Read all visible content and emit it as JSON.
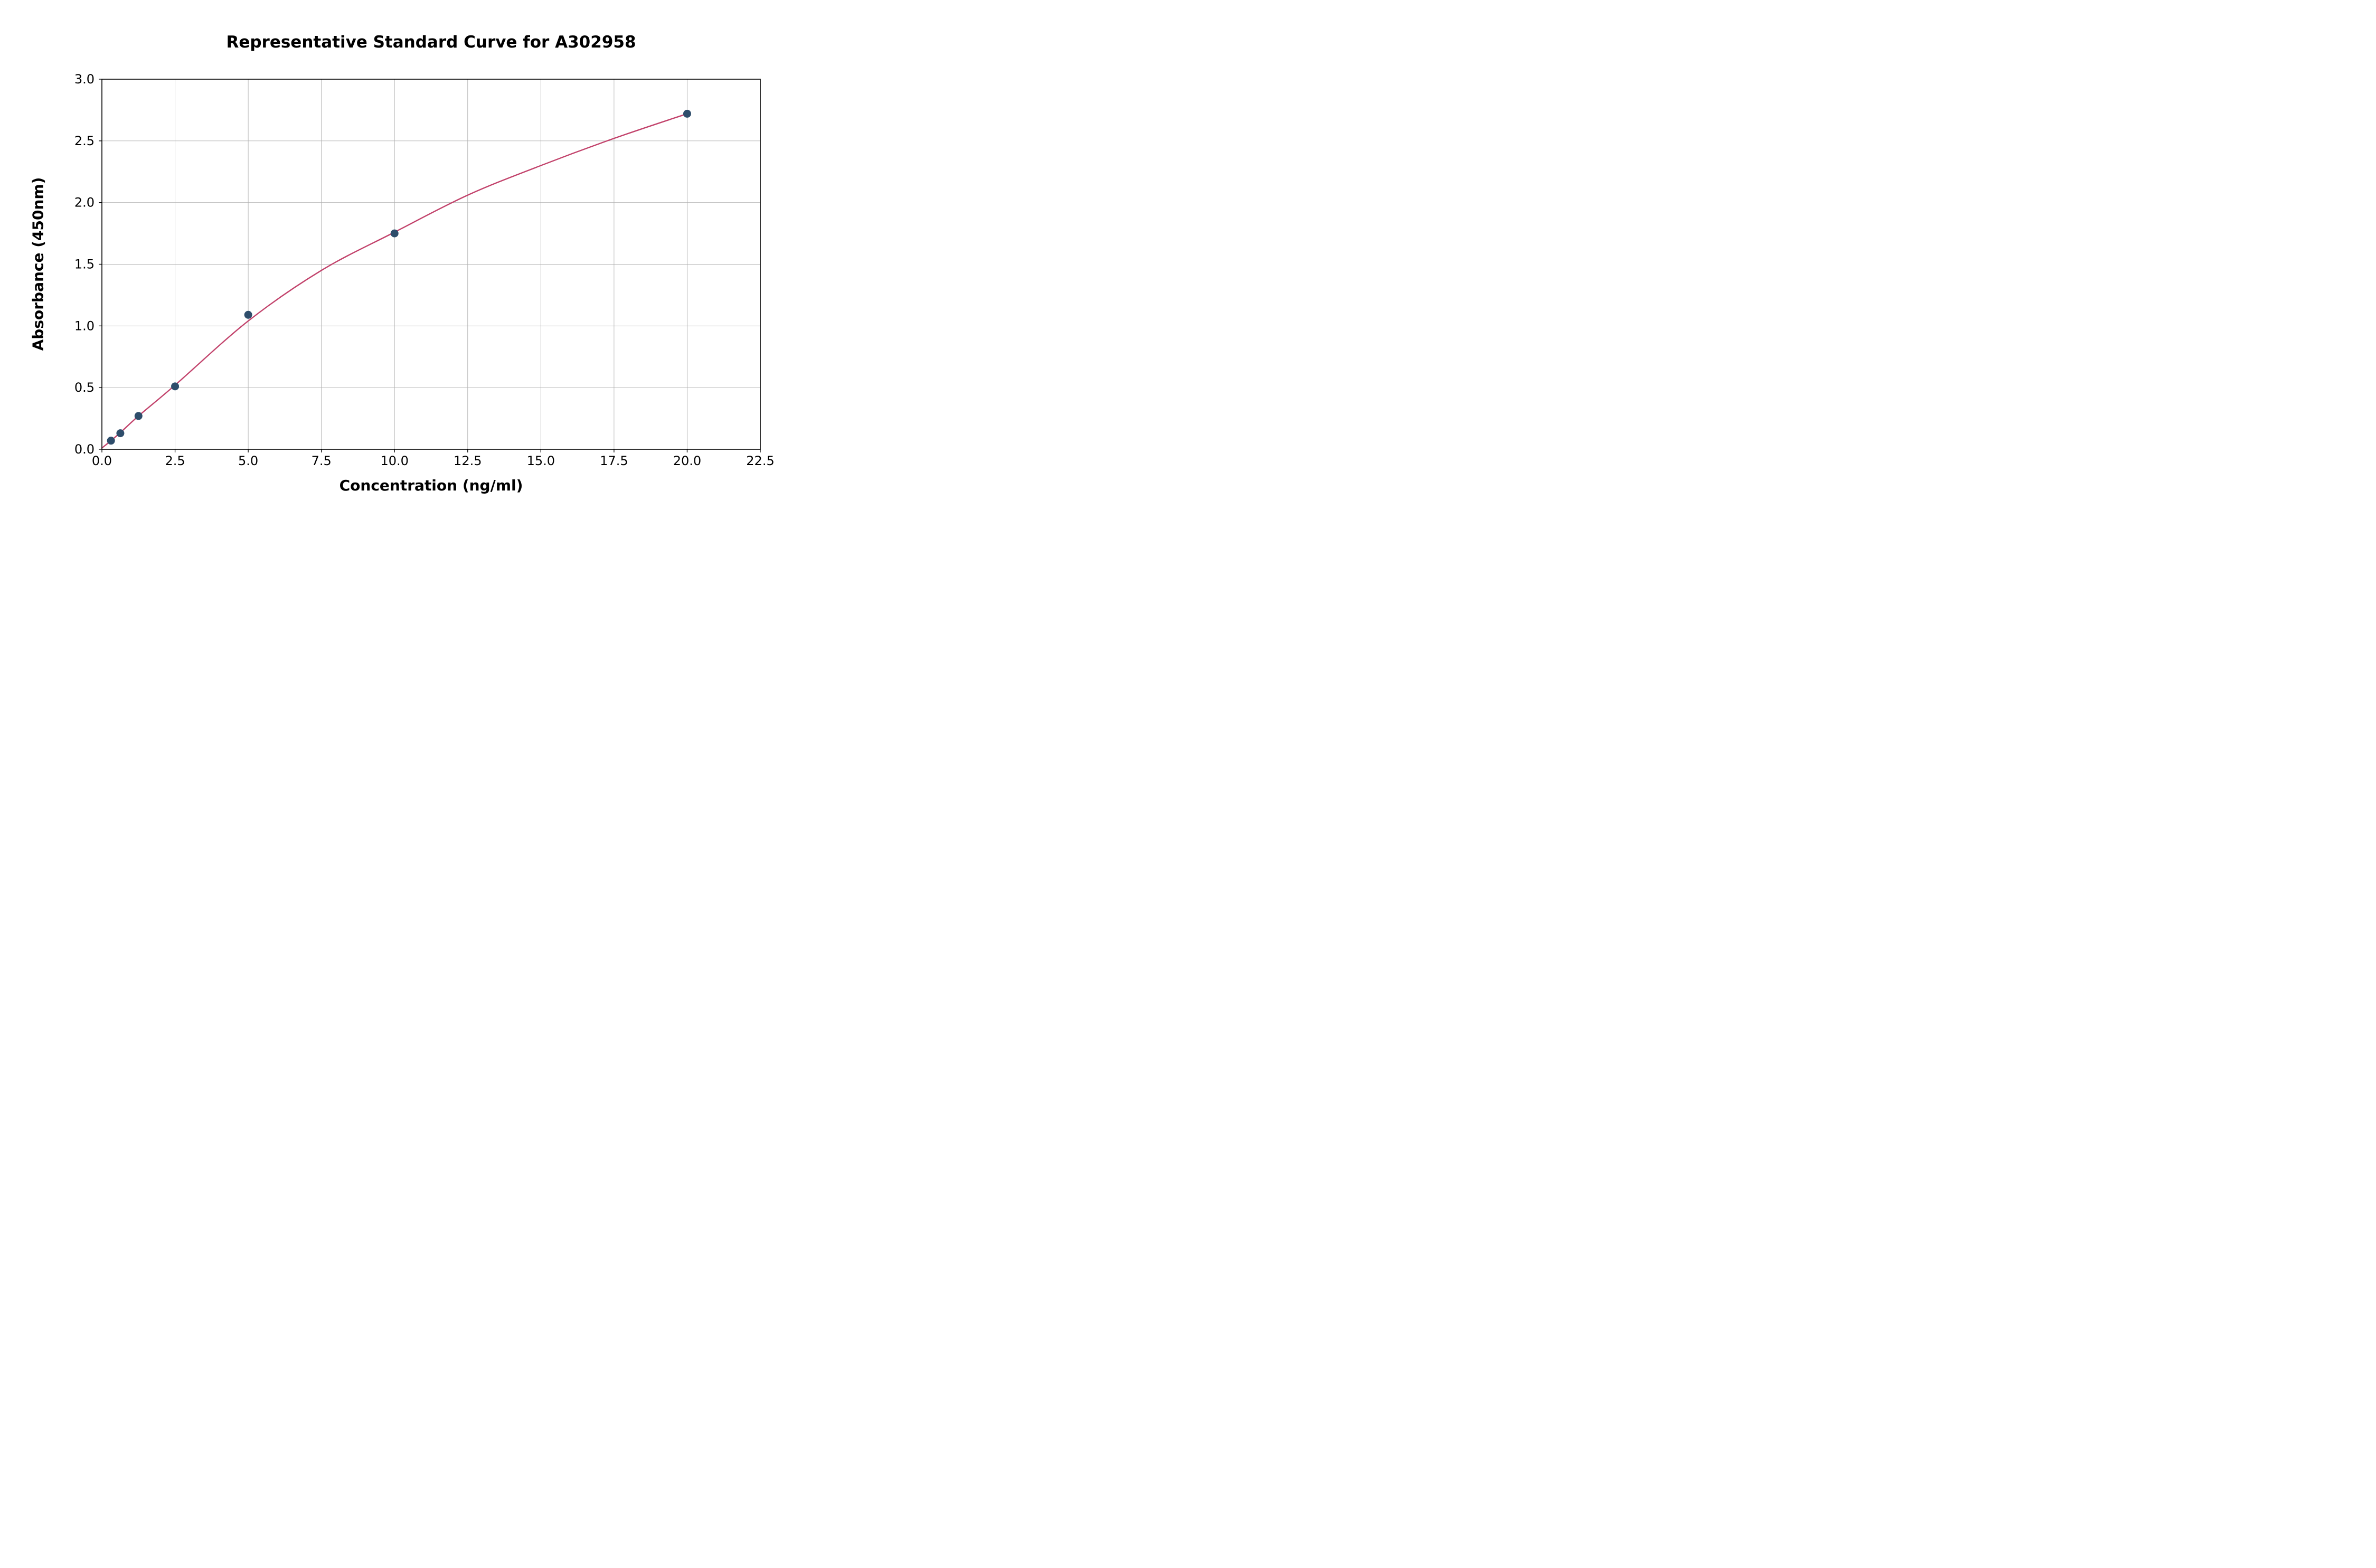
{
  "chart_data": {
    "type": "scatter",
    "title": "Representative Standard Curve for A302958",
    "xlabel": "Concentration (ng/ml)",
    "ylabel": "Absorbance (450nm)",
    "xlim": [
      0,
      22.5
    ],
    "ylim": [
      0,
      3.0
    ],
    "x_ticks": [
      0.0,
      2.5,
      5.0,
      7.5,
      10.0,
      12.5,
      15.0,
      17.5,
      20.0,
      22.5
    ],
    "x_tick_labels": [
      "0.0",
      "2.5",
      "5.0",
      "7.5",
      "10.0",
      "12.5",
      "15.0",
      "17.5",
      "20.0",
      "22.5"
    ],
    "y_ticks": [
      0.0,
      0.5,
      1.0,
      1.5,
      2.0,
      2.5,
      3.0
    ],
    "y_tick_labels": [
      "0.0",
      "0.5",
      "1.0",
      "1.5",
      "2.0",
      "2.5",
      "3.0"
    ],
    "grid": true,
    "series": [
      {
        "name": "standards",
        "style": "points",
        "x": [
          0.31,
          0.63,
          1.25,
          2.5,
          5.0,
          10.0,
          20.0
        ],
        "y": [
          0.07,
          0.13,
          0.27,
          0.51,
          1.09,
          1.75,
          2.72
        ]
      },
      {
        "name": "fitted-curve",
        "style": "line",
        "x": [
          0,
          0.31,
          0.63,
          1.25,
          2.5,
          5.0,
          7.5,
          10.0,
          12.5,
          15.0,
          17.5,
          20.0
        ],
        "y": [
          0.01,
          0.07,
          0.135,
          0.27,
          0.52,
          1.04,
          1.45,
          1.76,
          2.06,
          2.3,
          2.52,
          2.72
        ]
      }
    ],
    "colors": {
      "point": "#2e4d6b",
      "curve": "#c2426b",
      "grid": "#b0b0b0",
      "axis": "#000000",
      "background": "#ffffff"
    }
  }
}
